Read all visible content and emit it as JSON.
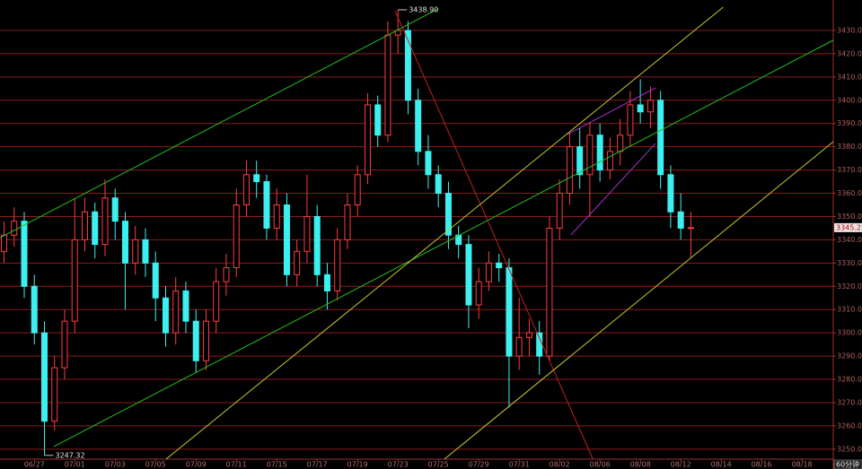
{
  "chart_data": {
    "type": "candlestick",
    "up_color": "#ff3c3c",
    "down_color": "#3cf0f0",
    "xlim": [
      -3.4,
      79.1
    ],
    "ylim": [
      3245.7,
      3443.1
    ],
    "grid": true,
    "grid_color": "#8a1c1c",
    "xticks": [
      {
        "value": 0,
        "label": "06/27"
      },
      {
        "value": 4,
        "label": "07/01"
      },
      {
        "value": 8,
        "label": "07/03"
      },
      {
        "value": 12,
        "label": "07/05"
      },
      {
        "value": 16,
        "label": "07/09"
      },
      {
        "value": 20,
        "label": "07/11"
      },
      {
        "value": 24,
        "label": "07/15"
      },
      {
        "value": 28,
        "label": "07/17"
      },
      {
        "value": 32,
        "label": "07/19"
      },
      {
        "value": 36,
        "label": "07/23"
      },
      {
        "value": 40,
        "label": "07/25"
      },
      {
        "value": 44,
        "label": "07/29"
      },
      {
        "value": 48,
        "label": "07/31"
      },
      {
        "value": 52,
        "label": "08/02"
      },
      {
        "value": 56,
        "label": "08/06"
      },
      {
        "value": 60,
        "label": "08/08"
      },
      {
        "value": 64,
        "label": "08/12"
      },
      {
        "value": 68,
        "label": "08/14"
      },
      {
        "value": 72,
        "label": "08/16"
      },
      {
        "value": 76,
        "label": "08/18"
      }
    ],
    "yticks": [
      {
        "value": 3250,
        "label": "3250.00"
      },
      {
        "value": 3260,
        "label": "3260.00"
      },
      {
        "value": 3270,
        "label": "3270.00"
      },
      {
        "value": 3280,
        "label": "3280.00"
      },
      {
        "value": 3290,
        "label": "3290.00"
      },
      {
        "value": 3300,
        "label": "3300.00"
      },
      {
        "value": 3310,
        "label": "3310.00"
      },
      {
        "value": 3320,
        "label": "3320.00"
      },
      {
        "value": 3330,
        "label": "3330.00"
      },
      {
        "value": 3340,
        "label": "3340.00"
      },
      {
        "value": 3350,
        "label": "3350.00"
      },
      {
        "value": 3360,
        "label": "3360.00"
      },
      {
        "value": 3370,
        "label": "3370.00"
      },
      {
        "value": 3380,
        "label": "3380.00"
      },
      {
        "value": 3390,
        "label": "3390.00"
      },
      {
        "value": 3400,
        "label": "3400.00"
      },
      {
        "value": 3410,
        "label": "3410.00"
      },
      {
        "value": 3420,
        "label": "3420.00"
      },
      {
        "value": 3430,
        "label": "3430.00"
      }
    ],
    "x": [
      -3,
      -2,
      -1,
      0,
      1,
      2,
      3,
      4,
      5,
      6,
      7,
      8,
      9,
      10,
      11,
      12,
      13,
      14,
      15,
      16,
      17,
      18,
      19,
      20,
      21,
      22,
      23,
      24,
      25,
      26,
      27,
      28,
      29,
      30,
      31,
      32,
      33,
      34,
      35,
      36,
      37,
      38,
      39,
      40,
      41,
      42,
      43,
      44,
      45,
      46,
      47,
      48,
      49,
      50,
      51,
      52,
      53,
      54,
      55,
      56,
      57,
      58,
      59,
      60,
      61,
      62,
      63,
      64,
      65
    ],
    "open": [
      3335,
      3342,
      3348,
      3320,
      3300,
      3262,
      3285,
      3305,
      3340,
      3352,
      3338,
      3358,
      3348,
      3330,
      3340,
      3330,
      3315,
      3300,
      3318,
      3305,
      3288,
      3305,
      3322,
      3328,
      3355,
      3368,
      3365,
      3345,
      3355,
      3325,
      3335,
      3350,
      3325,
      3318,
      3340,
      3355,
      3368,
      3398,
      3385,
      3428,
      3430,
      3400,
      3378,
      3368,
      3360,
      3342,
      3338,
      3312,
      3322,
      3330,
      3328,
      3290,
      3298,
      3300,
      3290,
      3345,
      3360,
      3380,
      3368,
      3385,
      3370,
      3378,
      3385,
      3398,
      3395,
      3400,
      3368,
      3352,
      3345
    ],
    "high": [
      3348,
      3354,
      3352,
      3325,
      3305,
      3290,
      3310,
      3358,
      3358,
      3356,
      3366,
      3362,
      3352,
      3346,
      3345,
      3335,
      3320,
      3324,
      3322,
      3310,
      3310,
      3328,
      3334,
      3362,
      3374,
      3374,
      3368,
      3362,
      3360,
      3340,
      3368,
      3355,
      3330,
      3345,
      3360,
      3372,
      3403,
      3402,
      3434,
      3438.9,
      3434,
      3405,
      3385,
      3372,
      3365,
      3346,
      3342,
      3328,
      3335,
      3334,
      3332,
      3315,
      3306,
      3305,
      3350,
      3366,
      3386,
      3388,
      3390,
      3390,
      3384,
      3392,
      3404,
      3409,
      3406,
      3404,
      3372,
      3360,
      3352
    ],
    "low": [
      3330,
      3337,
      3315,
      3295,
      3247.32,
      3258,
      3280,
      3300,
      3335,
      3332,
      3333,
      3340,
      3310,
      3325,
      3324,
      3305,
      3294,
      3295,
      3300,
      3283,
      3284,
      3300,
      3316,
      3324,
      3350,
      3358,
      3340,
      3340,
      3320,
      3320,
      3330,
      3320,
      3310,
      3314,
      3336,
      3350,
      3364,
      3380,
      3382,
      3420,
      3394,
      3372,
      3362,
      3354,
      3336,
      3332,
      3302,
      3306,
      3318,
      3322,
      3268,
      3284,
      3290,
      3282,
      3288,
      3340,
      3355,
      3362,
      3350,
      3365,
      3366,
      3372,
      3380,
      3390,
      3388,
      3362,
      3345,
      3340,
      3332
    ],
    "close": [
      3342,
      3348,
      3320,
      3300,
      3262,
      3285,
      3305,
      3340,
      3352,
      3338,
      3358,
      3348,
      3330,
      3340,
      3330,
      3315,
      3300,
      3318,
      3305,
      3288,
      3305,
      3322,
      3328,
      3355,
      3368,
      3365,
      3345,
      3355,
      3325,
      3335,
      3350,
      3325,
      3318,
      3340,
      3355,
      3368,
      3398,
      3385,
      3428,
      3430,
      3400,
      3378,
      3368,
      3360,
      3342,
      3338,
      3312,
      3322,
      3330,
      3328,
      3290,
      3298,
      3300,
      3290,
      3345,
      3360,
      3380,
      3368,
      3385,
      3370,
      3378,
      3385,
      3398,
      3395,
      3400,
      3368,
      3352,
      3345,
      3345.22
    ],
    "current_price": 3345.22,
    "annotations": [
      {
        "x": 36,
        "value": 3438.9,
        "label": "3438.90"
      },
      {
        "x": 1,
        "value": 3247.32,
        "label": "3247.32"
      }
    ],
    "trendlines": [
      {
        "color": "#22c022",
        "x": [
          -3.4,
          39.98
        ],
        "y": [
          3340.9,
          3439.3
        ]
      },
      {
        "color": "#22c022",
        "x": [
          1.93,
          79.1
        ],
        "y": [
          3251.1,
          3425.8
        ]
      },
      {
        "color": "#c02020",
        "x": [
          35.7,
          55.3
        ],
        "y": [
          3438.5,
          3245.7
        ]
      },
      {
        "color": "#c8c832",
        "x": [
          13.04,
          68.2
        ],
        "y": [
          3245.7,
          3440.0
        ]
      },
      {
        "color": "#c8c832",
        "x": [
          40.6,
          79.1
        ],
        "y": [
          3245.7,
          3382.2
        ]
      },
      {
        "color": "#b030d0",
        "x": [
          52.78,
          61.49
        ],
        "y": [
          3385.3,
          3405.3
        ]
      },
      {
        "color": "#b030d0",
        "x": [
          53.13,
          61.49
        ],
        "y": [
          3342.1,
          3381.4
        ]
      }
    ],
    "timeframe_label": "60分钟"
  }
}
